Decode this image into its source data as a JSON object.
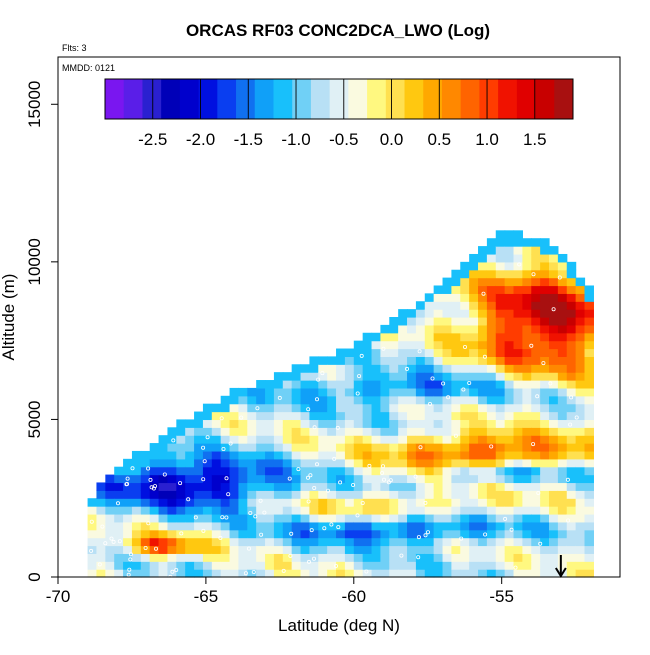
{
  "chart_data": {
    "type": "heatmap",
    "title": "ORCAS RF03 CONC2DCA_LWO (Log)",
    "xlabel": "Latitude (deg N)",
    "ylabel": "Altitude (m)",
    "xlim": [
      -70,
      -51
    ],
    "ylim": [
      0,
      16500
    ],
    "xticks": [
      -70,
      -65,
      -60,
      -55
    ],
    "yticks": [
      0,
      5000,
      10000,
      15000
    ],
    "annotations": {
      "flights": "Flts: 3",
      "date": "MMDD: 0121"
    },
    "colorbar": {
      "range": [
        -3,
        1.9
      ],
      "ticks": [
        -2.5,
        -2.0,
        -1.5,
        -1.0,
        -0.5,
        0.0,
        0.5,
        1.0,
        1.5
      ],
      "tick_labels": [
        "-2.5",
        "-2.0",
        "-1.5",
        "-1.0",
        "-0.5",
        "0.0",
        "0.5",
        "1.0",
        "1.5"
      ],
      "colors": [
        "#7a16f0",
        "#5a1ee8",
        "#2a20d0",
        "#0000b8",
        "#0000cc",
        "#0010e0",
        "#0a3ef0",
        "#1070f0",
        "#10a0f8",
        "#18c0fb",
        "#70d0f6",
        "#b8e0f5",
        "#e0f0f5",
        "#fafae0",
        "#fff880",
        "#ffe050",
        "#ffc810",
        "#ffa800",
        "#ff8800",
        "#ff6400",
        "#ff3c00",
        "#f01200",
        "#e00000",
        "#c80000",
        "#a81010"
      ]
    },
    "envelope": {
      "lat": [
        -69.0,
        -68.0,
        -66.0,
        -64.0,
        -62.0,
        -60.0,
        -58.0,
        -56.0,
        -55.0,
        -54.0,
        -53.0,
        -52.0
      ],
      "top_alt": [
        2300,
        3300,
        4700,
        5800,
        6500,
        7300,
        8500,
        10000,
        10900,
        10700,
        10300,
        9000
      ]
    },
    "grid_lat_step": 0.3,
    "grid_alt_step": 250,
    "marker_lat": -53.0,
    "marker_alt": 0
  }
}
